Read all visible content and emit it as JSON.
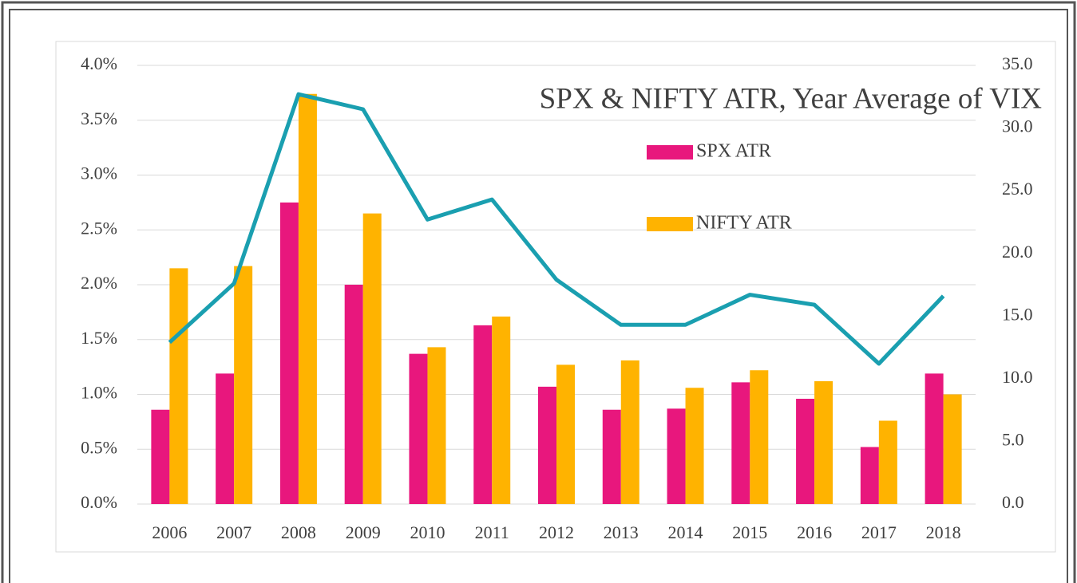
{
  "chart_data": {
    "type": "bar",
    "title": "SPX & NIFTY ATR, Year Average of VIX",
    "categories": [
      "2006",
      "2007",
      "2008",
      "2009",
      "2010",
      "2011",
      "2012",
      "2013",
      "2014",
      "2015",
      "2016",
      "2017",
      "2018"
    ],
    "series": [
      {
        "name": "SPX ATR",
        "color": "#e8177d",
        "type": "bar",
        "values": [
          0.86,
          1.19,
          2.75,
          2.0,
          1.37,
          1.63,
          1.07,
          0.86,
          0.87,
          1.11,
          0.96,
          0.52,
          1.19
        ]
      },
      {
        "name": "NIFTY ATR",
        "color": "#ffb300",
        "type": "bar",
        "values": [
          2.15,
          2.17,
          3.74,
          2.65,
          1.43,
          1.71,
          1.27,
          1.31,
          1.06,
          1.22,
          1.12,
          0.76,
          1.0
        ]
      },
      {
        "color": "#1a9fb0",
        "type": "line",
        "axis": "y2",
        "values": [
          12.9,
          17.6,
          32.7,
          31.5,
          22.7,
          24.3,
          17.9,
          14.3,
          14.3,
          16.7,
          15.9,
          11.2,
          16.6
        ]
      }
    ],
    "ylim": [
      0,
      4
    ],
    "yticks": [
      {
        "value": 0,
        "label": "0.0%"
      },
      {
        "value": 0.5,
        "label": "0.5%"
      },
      {
        "value": 1,
        "label": "1.0%"
      },
      {
        "value": 1.5,
        "label": "1.5%"
      },
      {
        "value": 2,
        "label": "2.0%"
      },
      {
        "value": 2.5,
        "label": "2.5%"
      },
      {
        "value": 3,
        "label": "3.0%"
      },
      {
        "value": 3.5,
        "label": "3.5%"
      },
      {
        "value": 4,
        "label": "4.0%"
      }
    ],
    "y2lim": [
      0,
      35
    ],
    "y2ticks": [
      {
        "value": 0,
        "label": "0.0"
      },
      {
        "value": 5,
        "label": "5.0"
      },
      {
        "value": 10,
        "label": "10.0"
      },
      {
        "value": 15,
        "label": "15.0"
      },
      {
        "value": 20,
        "label": "20.0"
      },
      {
        "value": 25,
        "label": "25.0"
      },
      {
        "value": 30,
        "label": "30.0"
      },
      {
        "value": 35,
        "label": "35.0"
      }
    ],
    "grid": true
  }
}
